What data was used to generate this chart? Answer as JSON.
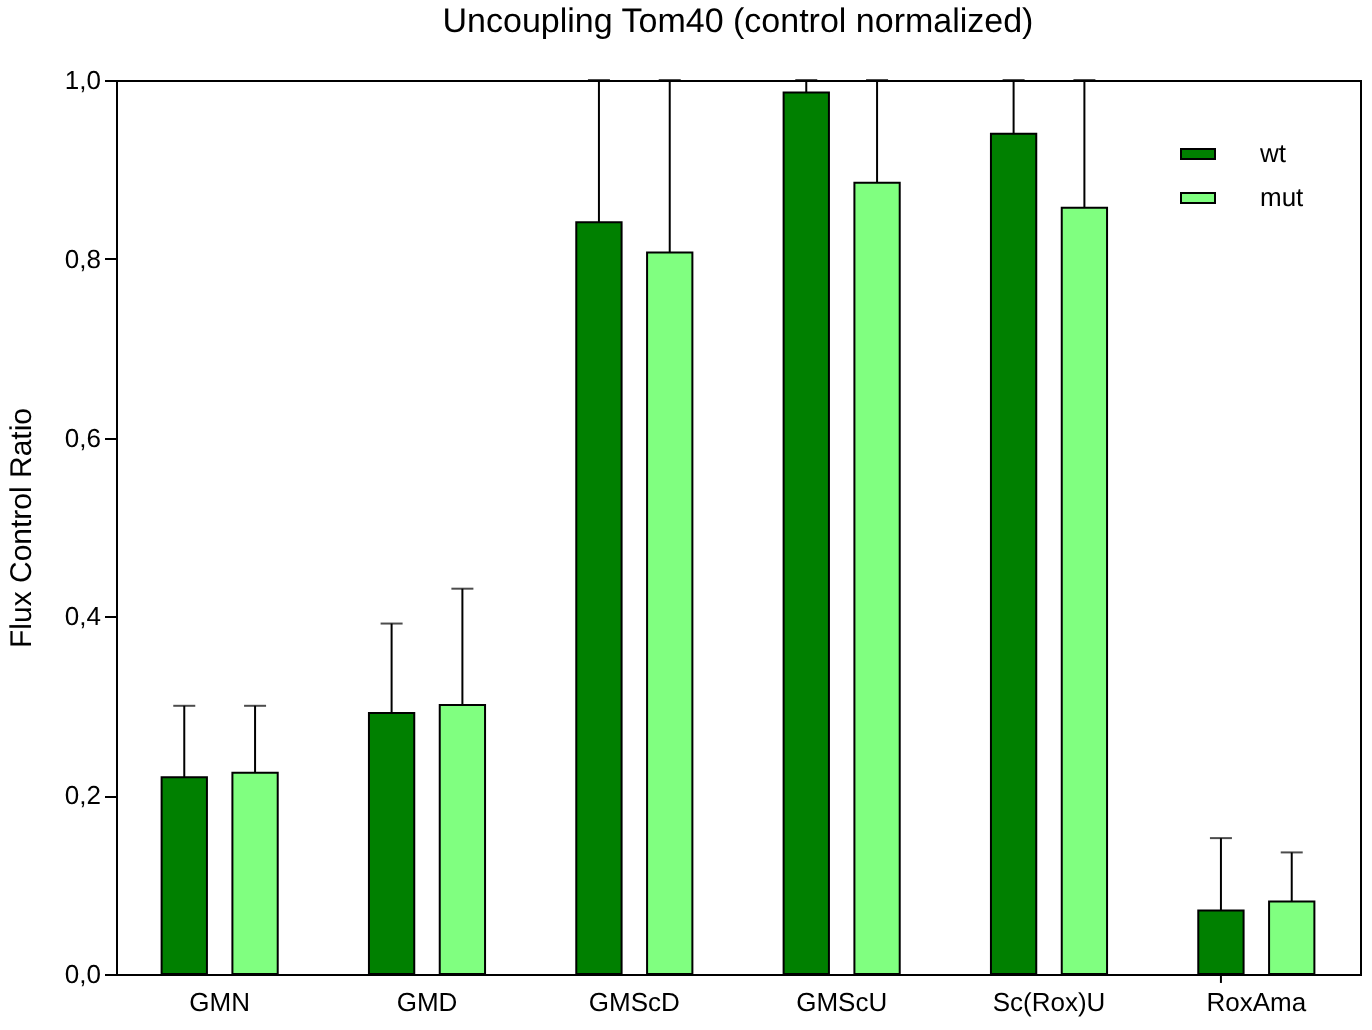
{
  "chart_data": {
    "type": "bar",
    "title": "Uncoupling Tom40 (control normalized)",
    "ylabel": "Flux Control Ratio",
    "categories": [
      "GMN",
      "GMD",
      "GMScD",
      "GMScU",
      "Sc(Rox)U",
      "RoxAma"
    ],
    "series": [
      {
        "name": "wt",
        "color": "#008000",
        "values": [
          0.22,
          0.292,
          0.841,
          0.986,
          0.94,
          0.071
        ],
        "errors": [
          0.08,
          0.1,
          [
            0.841,
            1.0
          ],
          [
            0.986,
            1.0
          ],
          [
            0.94,
            1.0
          ],
          0.081
        ]
      },
      {
        "name": "mut",
        "color": "#80ff80",
        "values": [
          0.225,
          0.301,
          0.807,
          0.885,
          0.857,
          0.081
        ],
        "errors": [
          0.075,
          0.13,
          [
            0.807,
            1.0
          ],
          [
            0.885,
            1.0
          ],
          [
            0.857,
            1.0
          ],
          0.055
        ]
      }
    ],
    "ylim": [
      0,
      1.0
    ],
    "yticks": [
      {
        "value": 0,
        "label": "0,0"
      },
      {
        "value": 0.2,
        "label": "0,2"
      },
      {
        "value": 0.4,
        "label": "0,4"
      },
      {
        "value": 0.6,
        "label": "0,6"
      },
      {
        "value": 0.8,
        "label": "0,8"
      },
      {
        "value": 1.0,
        "label": "1,0"
      }
    ],
    "grid": false,
    "legend": "top right"
  }
}
